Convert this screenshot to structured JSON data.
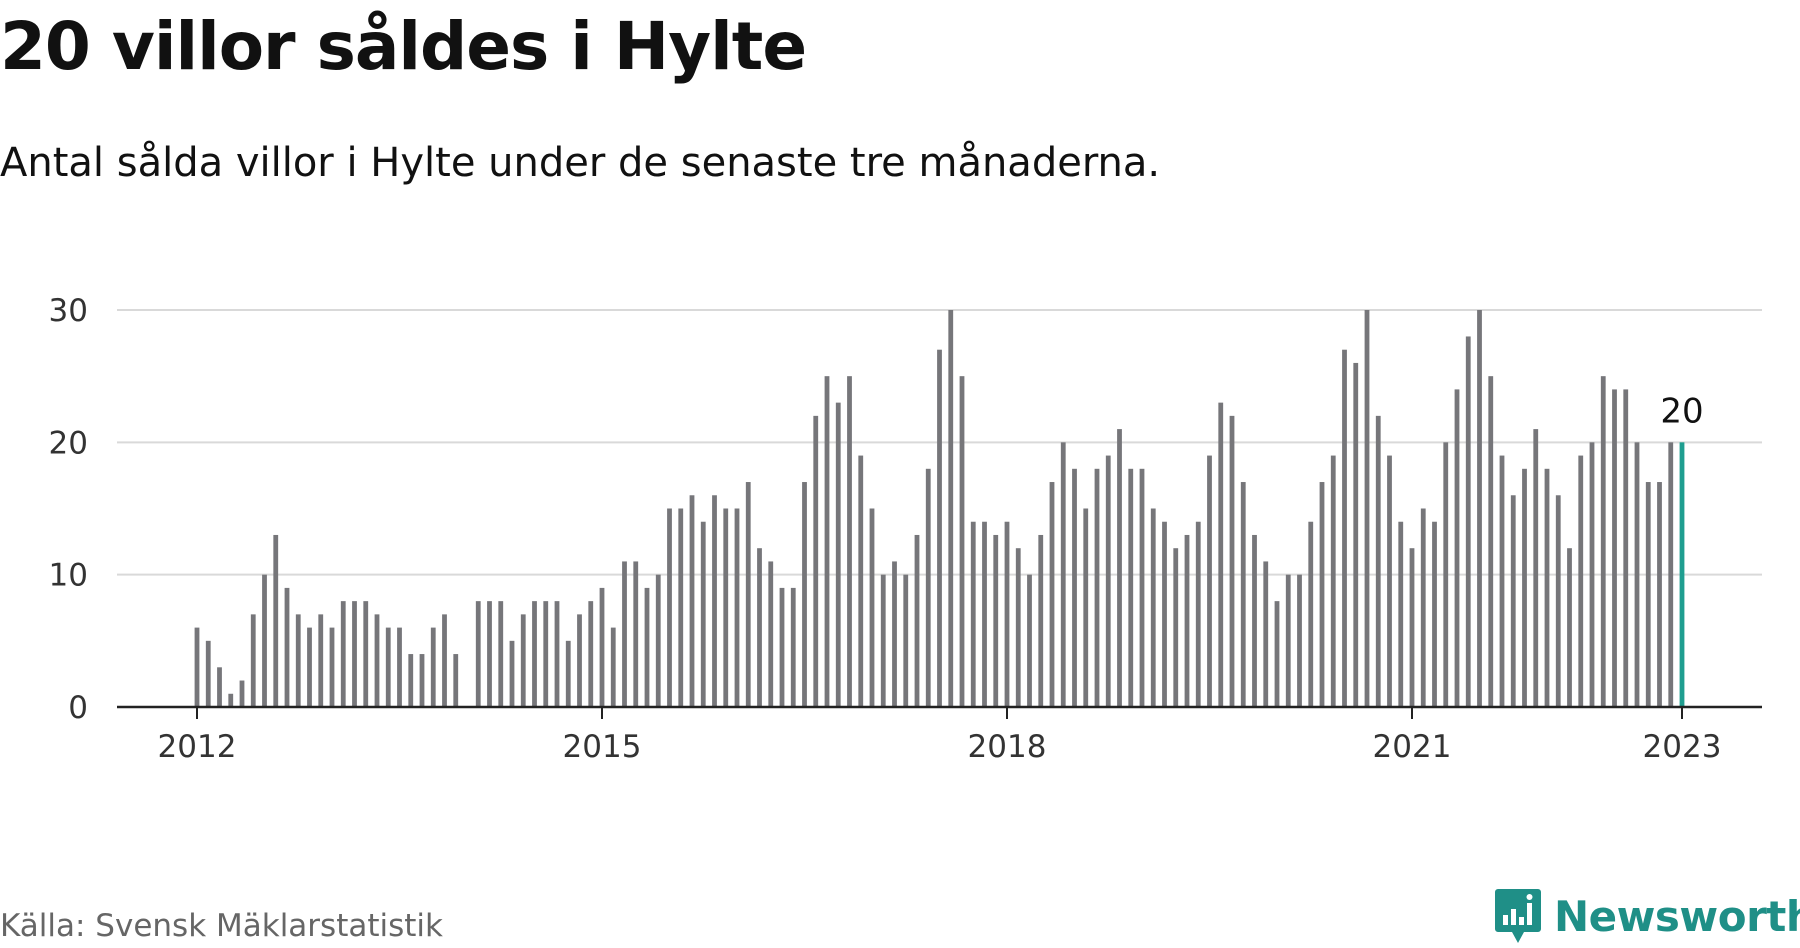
{
  "title": "20 villor såldes i Hylte",
  "subtitle": "Antal sålda villor i Hylte under de senaste tre månaderna.",
  "source": "Källa: Svensk Mäklarstatistik",
  "logo": {
    "text": "Newsworthy",
    "icon": "newsworthy-logo-icon"
  },
  "colors": {
    "bar": "#76767a",
    "highlight": "#1f9e90",
    "grid": "#d9d9d9",
    "axis": "#222222",
    "brand": "#1f8f87"
  },
  "chart_data": {
    "type": "bar",
    "title": "20 villor såldes i Hylte",
    "ylim": [
      0,
      30
    ],
    "yticks": [
      0,
      10,
      20,
      30
    ],
    "xticks": [
      "2012",
      "2015",
      "2018",
      "2021",
      "2023"
    ],
    "grid": true,
    "start": "2012-01",
    "frequency": "monthly",
    "values": [
      6,
      5,
      3,
      1,
      2,
      7,
      10,
      13,
      9,
      7,
      6,
      7,
      6,
      8,
      8,
      8,
      7,
      6,
      6,
      4,
      4,
      6,
      7,
      4,
      null,
      8,
      8,
      8,
      5,
      7,
      8,
      8,
      8,
      5,
      7,
      8,
      9,
      6,
      11,
      11,
      9,
      10,
      15,
      15,
      16,
      14,
      16,
      15,
      15,
      17,
      12,
      11,
      9,
      9,
      17,
      22,
      25,
      23,
      25,
      19,
      15,
      10,
      11,
      10,
      13,
      18,
      27,
      30,
      25,
      14,
      14,
      13,
      14,
      12,
      10,
      13,
      17,
      20,
      18,
      15,
      18,
      19,
      21,
      18,
      18,
      15,
      14,
      12,
      13,
      14,
      19,
      23,
      22,
      17,
      13,
      11,
      8,
      10,
      10,
      14,
      17,
      19,
      27,
      26,
      30,
      22,
      19,
      14,
      12,
      15,
      14,
      20,
      24,
      28,
      30,
      25,
      19,
      16,
      18,
      21,
      18,
      16,
      12,
      19,
      20,
      25,
      24,
      24,
      20,
      17,
      17,
      20,
      20
    ],
    "highlight_last": true,
    "annotation": {
      "label": "20",
      "value": 20
    }
  }
}
